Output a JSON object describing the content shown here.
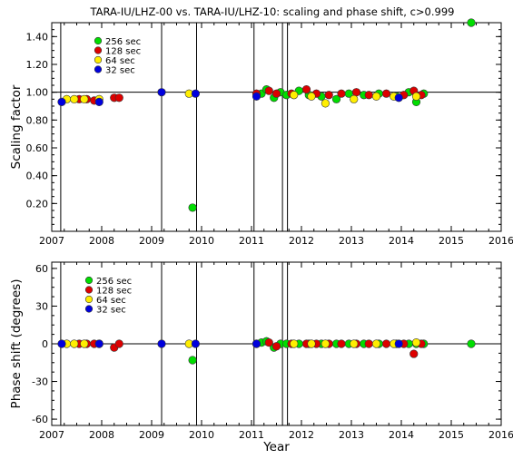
{
  "chart_data": [
    {
      "type": "scatter",
      "title": "TARA-IU/LHZ-00 vs. TARA-IU/LHZ-10: scaling and phase shift, c>0.999",
      "xlabel": "",
      "ylabel": "Scaling factor",
      "xlim": [
        2007,
        2016
      ],
      "ylim": [
        0.0,
        1.5
      ],
      "x_ticks": [
        "2007",
        "2008",
        "2009",
        "2010",
        "2011",
        "2012",
        "2013",
        "2014",
        "2015",
        "2016"
      ],
      "y_ticks": [
        "0.20",
        "0.40",
        "0.60",
        "0.80",
        "1.00",
        "1.20",
        "1.40"
      ],
      "reference_line": 1.0,
      "event_lines": [
        2007.18,
        2009.2,
        2009.9,
        2011.05,
        2011.62,
        2011.72
      ],
      "legend": [
        "256 sec",
        "128 sec",
        "64 sec",
        "32 sec"
      ],
      "legend_position": "top-left",
      "series": [
        {
          "name": "256 sec",
          "color": "#00dd00",
          "points": [
            [
              2009.82,
              0.17
            ],
            [
              2011.2,
              0.99
            ],
            [
              2011.3,
              1.02
            ],
            [
              2011.45,
              0.96
            ],
            [
              2011.58,
              1.0
            ],
            [
              2011.7,
              0.98
            ],
            [
              2011.95,
              1.01
            ],
            [
              2012.15,
              0.98
            ],
            [
              2012.4,
              0.97
            ],
            [
              2012.7,
              0.95
            ],
            [
              2012.95,
              0.99
            ],
            [
              2013.25,
              0.98
            ],
            [
              2013.55,
              0.99
            ],
            [
              2013.9,
              0.97
            ],
            [
              2014.15,
              1.0
            ],
            [
              2014.3,
              0.93
            ],
            [
              2014.45,
              0.99
            ],
            [
              2015.4,
              1.5
            ]
          ]
        },
        {
          "name": "128 sec",
          "color": "#dd0000",
          "points": [
            [
              2007.55,
              0.95
            ],
            [
              2007.7,
              0.95
            ],
            [
              2007.85,
              0.94
            ],
            [
              2008.25,
              0.96
            ],
            [
              2008.35,
              0.96
            ],
            [
              2011.1,
              0.99
            ],
            [
              2011.35,
              1.01
            ],
            [
              2011.5,
              0.99
            ],
            [
              2011.8,
              0.99
            ],
            [
              2012.1,
              1.02
            ],
            [
              2012.3,
              0.99
            ],
            [
              2012.55,
              0.98
            ],
            [
              2012.8,
              0.99
            ],
            [
              2013.1,
              1.0
            ],
            [
              2013.35,
              0.98
            ],
            [
              2013.7,
              0.99
            ],
            [
              2014.05,
              0.98
            ],
            [
              2014.25,
              1.01
            ],
            [
              2014.4,
              0.98
            ]
          ]
        },
        {
          "name": "64 sec",
          "color": "#ffee00",
          "points": [
            [
              2007.3,
              0.95
            ],
            [
              2007.45,
              0.95
            ],
            [
              2007.65,
              0.95
            ],
            [
              2007.95,
              0.95
            ],
            [
              2009.75,
              0.99
            ],
            [
              2011.85,
              0.98
            ],
            [
              2012.2,
              0.97
            ],
            [
              2012.48,
              0.92
            ],
            [
              2013.05,
              0.95
            ],
            [
              2013.5,
              0.97
            ],
            [
              2013.85,
              0.97
            ],
            [
              2014.3,
              0.97
            ]
          ]
        },
        {
          "name": "32 sec",
          "color": "#0000dd",
          "points": [
            [
              2007.2,
              0.93
            ],
            [
              2007.95,
              0.93
            ],
            [
              2009.2,
              1.0
            ],
            [
              2009.88,
              0.99
            ],
            [
              2011.1,
              0.97
            ],
            [
              2013.95,
              0.96
            ]
          ]
        }
      ]
    },
    {
      "type": "scatter",
      "title": "",
      "xlabel": "Year",
      "ylabel": "Phase shift (degrees)",
      "xlim": [
        2007,
        2016
      ],
      "ylim": [
        -65,
        65
      ],
      "x_ticks": [
        "2007",
        "2008",
        "2009",
        "2010",
        "2011",
        "2012",
        "2013",
        "2014",
        "2015",
        "2016"
      ],
      "y_ticks": [
        "-60",
        "-30",
        "0",
        "30",
        "60"
      ],
      "reference_line": 0,
      "event_lines": [
        2007.18,
        2009.2,
        2009.9,
        2011.05,
        2011.62,
        2011.72
      ],
      "legend": [
        "256 sec",
        "128 sec",
        "64 sec",
        "32 sec"
      ],
      "legend_position": "top-left",
      "series": [
        {
          "name": "256 sec",
          "color": "#00dd00",
          "points": [
            [
              2009.82,
              -13
            ],
            [
              2011.2,
              1
            ],
            [
              2011.3,
              2
            ],
            [
              2011.45,
              -3
            ],
            [
              2011.58,
              0
            ],
            [
              2011.7,
              0
            ],
            [
              2011.95,
              0
            ],
            [
              2012.15,
              0
            ],
            [
              2012.4,
              0
            ],
            [
              2012.7,
              0
            ],
            [
              2012.95,
              0
            ],
            [
              2013.25,
              0
            ],
            [
              2013.55,
              0
            ],
            [
              2013.9,
              0
            ],
            [
              2014.15,
              0
            ],
            [
              2014.3,
              0
            ],
            [
              2014.45,
              0
            ],
            [
              2015.4,
              0
            ]
          ]
        },
        {
          "name": "128 sec",
          "color": "#dd0000",
          "points": [
            [
              2007.55,
              0
            ],
            [
              2007.7,
              0
            ],
            [
              2007.85,
              0
            ],
            [
              2008.25,
              -3
            ],
            [
              2008.35,
              0
            ],
            [
              2011.1,
              0
            ],
            [
              2011.35,
              1
            ],
            [
              2011.5,
              -2
            ],
            [
              2011.8,
              0
            ],
            [
              2012.1,
              0
            ],
            [
              2012.3,
              0
            ],
            [
              2012.55,
              0
            ],
            [
              2012.8,
              0
            ],
            [
              2013.1,
              0
            ],
            [
              2013.35,
              0
            ],
            [
              2013.7,
              0
            ],
            [
              2014.05,
              0
            ],
            [
              2014.25,
              -8
            ],
            [
              2014.4,
              0
            ]
          ]
        },
        {
          "name": "64 sec",
          "color": "#ffee00",
          "points": [
            [
              2007.3,
              0
            ],
            [
              2007.45,
              0
            ],
            [
              2007.65,
              0
            ],
            [
              2007.95,
              0
            ],
            [
              2009.75,
              0
            ],
            [
              2011.85,
              0
            ],
            [
              2012.2,
              0
            ],
            [
              2012.48,
              0
            ],
            [
              2013.05,
              0
            ],
            [
              2013.5,
              0
            ],
            [
              2013.85,
              0
            ],
            [
              2014.3,
              1
            ]
          ]
        },
        {
          "name": "32 sec",
          "color": "#0000dd",
          "points": [
            [
              2007.2,
              0
            ],
            [
              2007.95,
              0
            ],
            [
              2009.2,
              0
            ],
            [
              2009.88,
              0
            ],
            [
              2011.1,
              0
            ],
            [
              2013.95,
              0
            ]
          ]
        }
      ]
    }
  ]
}
